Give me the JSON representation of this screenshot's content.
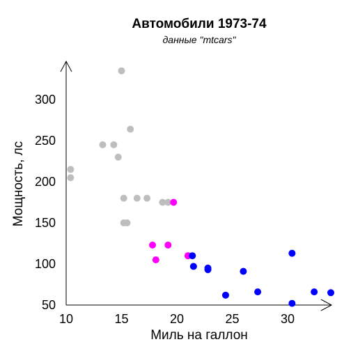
{
  "chart_data": {
    "type": "scatter",
    "title": "Автомобили 1973-74",
    "subtitle": "данные \"mtcars\"",
    "xlabel": "Миль на галлон",
    "ylabel": "Мощность, лс",
    "xlim": [
      10,
      34
    ],
    "ylim": [
      50,
      340
    ],
    "xticks": [
      "10",
      "15",
      "20",
      "25",
      "30"
    ],
    "yticks": [
      "50",
      "100",
      "150",
      "200",
      "250",
      "300"
    ],
    "grid": false,
    "legend": "none",
    "colors": {
      "gray": "#bebebe",
      "magenta": "#ff00ff",
      "blue": "#0000ff"
    },
    "series": [
      {
        "color_key": "gray",
        "points": [
          {
            "x": 15.0,
            "y": 335
          },
          {
            "x": 15.8,
            "y": 264
          },
          {
            "x": 13.3,
            "y": 245
          },
          {
            "x": 14.3,
            "y": 245
          },
          {
            "x": 14.7,
            "y": 230
          },
          {
            "x": 10.4,
            "y": 215
          },
          {
            "x": 10.4,
            "y": 205
          },
          {
            "x": 15.2,
            "y": 180
          },
          {
            "x": 16.4,
            "y": 180
          },
          {
            "x": 17.3,
            "y": 180
          },
          {
            "x": 18.7,
            "y": 175
          },
          {
            "x": 19.2,
            "y": 175
          },
          {
            "x": 15.2,
            "y": 150
          },
          {
            "x": 15.5,
            "y": 150
          }
        ]
      },
      {
        "color_key": "magenta",
        "points": [
          {
            "x": 19.7,
            "y": 175
          },
          {
            "x": 17.8,
            "y": 123
          },
          {
            "x": 19.2,
            "y": 123
          },
          {
            "x": 18.1,
            "y": 105
          },
          {
            "x": 21.0,
            "y": 110
          },
          {
            "x": 21.0,
            "y": 110
          }
        ]
      },
      {
        "color_key": "blue",
        "points": [
          {
            "x": 21.4,
            "y": 110
          },
          {
            "x": 21.5,
            "y": 97
          },
          {
            "x": 22.8,
            "y": 93
          },
          {
            "x": 22.8,
            "y": 95
          },
          {
            "x": 24.4,
            "y": 62
          },
          {
            "x": 26.0,
            "y": 91
          },
          {
            "x": 27.3,
            "y": 66
          },
          {
            "x": 30.4,
            "y": 113
          },
          {
            "x": 30.4,
            "y": 52
          },
          {
            "x": 32.4,
            "y": 66
          },
          {
            "x": 33.9,
            "y": 65
          }
        ]
      }
    ]
  }
}
